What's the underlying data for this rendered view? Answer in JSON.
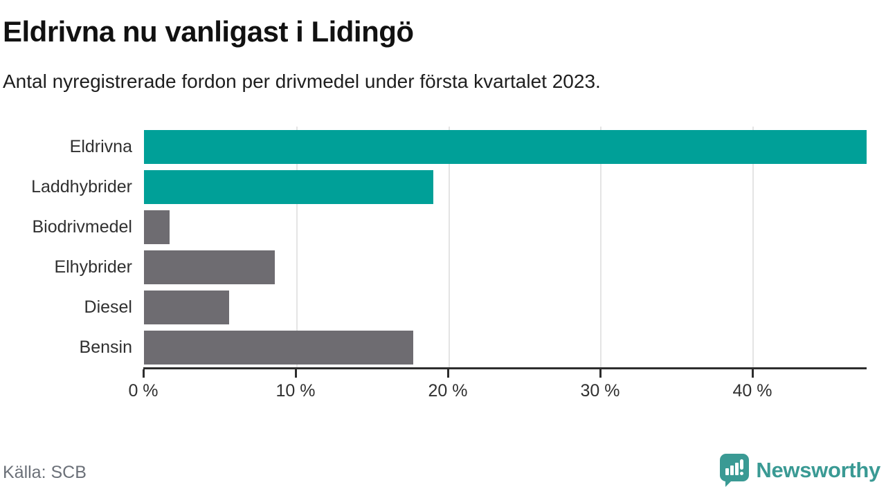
{
  "header": {
    "title": "Eldrivna nu vanligast i Lidingö",
    "subtitle": "Antal nyregistrerade fordon per drivmedel under första kvartalet 2023."
  },
  "chart_data": {
    "type": "bar",
    "orientation": "horizontal",
    "title": "Eldrivna nu vanligast i Lidingö",
    "subtitle": "Antal nyregistrerade fordon per drivmedel under första kvartalet 2023.",
    "categories": [
      "Eldrivna",
      "Laddhybrider",
      "Biodrivmedel",
      "Elhybrider",
      "Diesel",
      "Bensin"
    ],
    "values": [
      47.5,
      19.0,
      1.7,
      8.6,
      5.6,
      17.7
    ],
    "unit": "%",
    "bar_colors": [
      "#00a098",
      "#00a098",
      "#6e6c71",
      "#6e6c71",
      "#6e6c71",
      "#6e6c71"
    ],
    "xlabel": "",
    "ylabel": "",
    "xlim": [
      0,
      47.5
    ],
    "x_ticks": [
      0,
      10,
      20,
      30,
      40
    ],
    "x_tick_labels": [
      "0 %",
      "10 %",
      "20 %",
      "30 %",
      "40 %"
    ],
    "grid": "vertical",
    "legend": "none"
  },
  "colors": {
    "accent": "#00a098",
    "muted_bar": "#6e6c71",
    "gridline": "#e4e4e4",
    "axis": "#2d2d2d",
    "logo_teal": "#3a9a94"
  },
  "footer": {
    "source": "Källa: SCB",
    "brand": "Newsworthy"
  },
  "icons": {
    "brand_logo": "speech-bubble-bar-chart-icon"
  }
}
